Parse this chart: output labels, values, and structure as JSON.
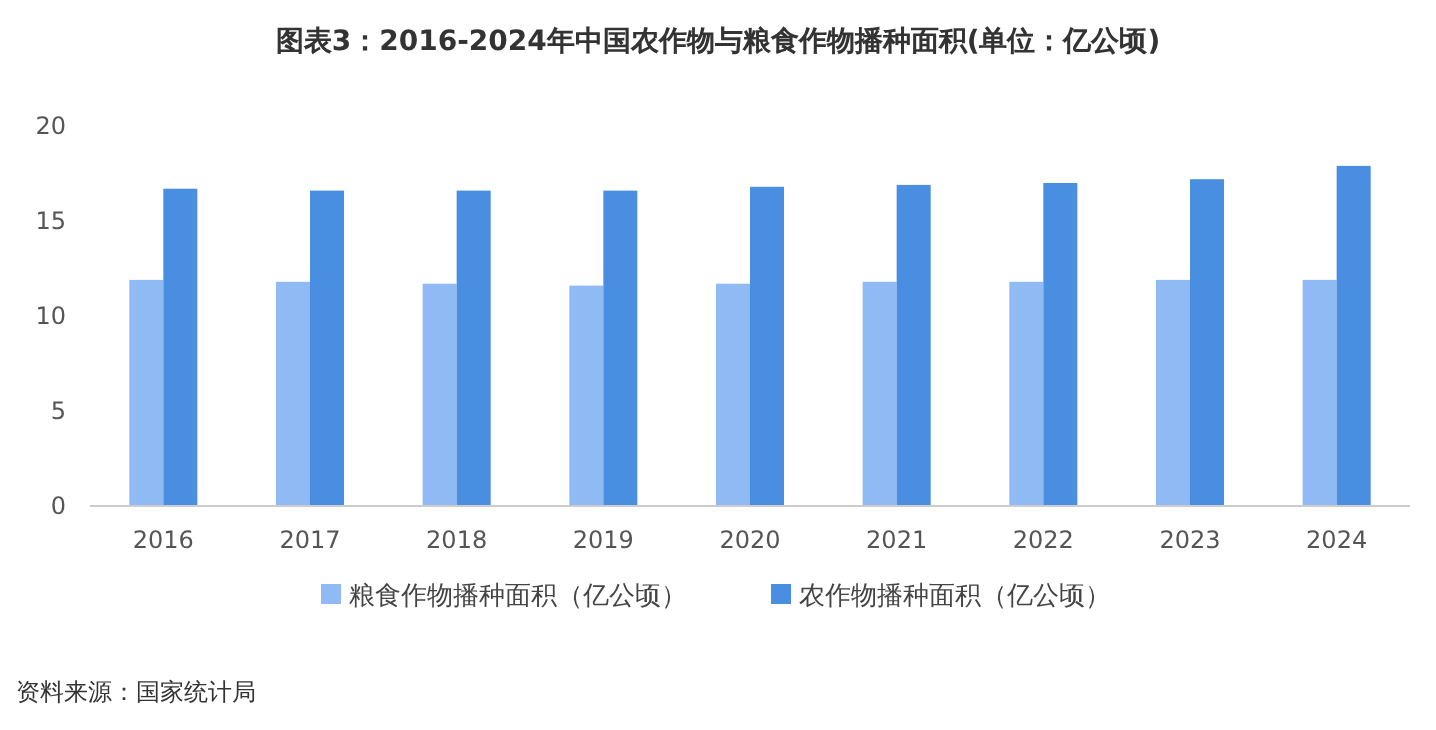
{
  "chart_data": {
    "type": "bar",
    "title": "图表3：2016-2024年中国农作物与粮食作物播种面积(单位：亿公顷)",
    "categories": [
      "2016",
      "2017",
      "2018",
      "2019",
      "2020",
      "2021",
      "2022",
      "2023",
      "2024"
    ],
    "series": [
      {
        "name": "粮食作物播种面积（亿公顷）",
        "color": "#8fbaf3",
        "values": [
          11.9,
          11.8,
          11.7,
          11.6,
          11.7,
          11.8,
          11.8,
          11.9,
          11.9
        ]
      },
      {
        "name": "农作物播种面积（亿公顷）",
        "color": "#4a8ee2",
        "values": [
          16.7,
          16.6,
          16.6,
          16.6,
          16.8,
          16.9,
          17.0,
          17.2,
          17.9
        ]
      }
    ],
    "ylim": [
      0,
      20
    ],
    "yticks": [
      0,
      5,
      10,
      15,
      20
    ],
    "legend": "bottom",
    "annotations": [
      "资料来源：国家统计局"
    ]
  }
}
